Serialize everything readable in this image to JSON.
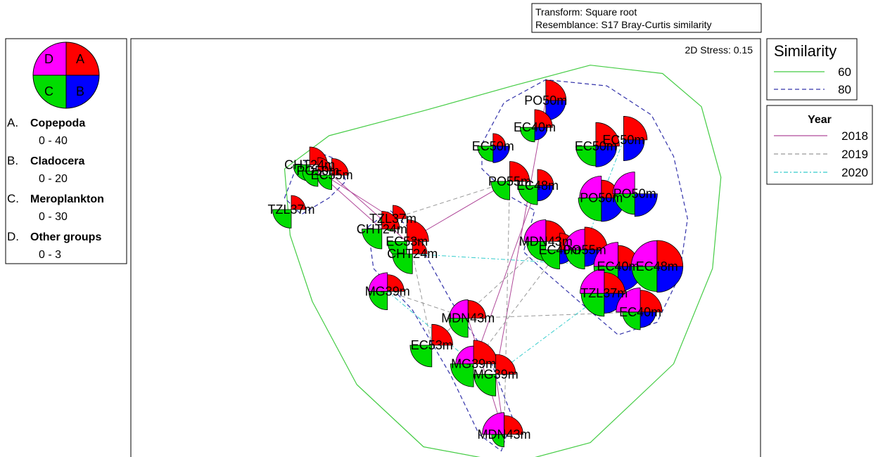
{
  "transform_box": {
    "line1": "Transform: Square root",
    "line2": "Resemblance: S17 Bray-Curtis similarity"
  },
  "legend_key": {
    "quadrants": {
      "A": "#ff0000",
      "B": "#0000ff",
      "C": "#00dd00",
      "D": "#ff00ff"
    },
    "items": [
      {
        "letter": "A.",
        "name": "Copepoda",
        "range": "0 - 40"
      },
      {
        "letter": "B.",
        "name": "Cladocera",
        "range": "0 - 20"
      },
      {
        "letter": "C.",
        "name": "Meroplankton",
        "range": "0 - 30"
      },
      {
        "letter": "D.",
        "name": "Other groups",
        "range": "0 - 3"
      }
    ]
  },
  "similarity_legend": {
    "title": "Similarity",
    "title_color": "#1a1aff",
    "entries": [
      {
        "label": "60",
        "color": "#44cc44",
        "dash": ""
      },
      {
        "label": "80",
        "color": "#3333aa",
        "dash": "6,4"
      }
    ]
  },
  "year_legend": {
    "title": "Year",
    "entries": [
      {
        "label": "2018",
        "color": "#b04a9a",
        "dash": ""
      },
      {
        "label": "2019",
        "color": "#999999",
        "dash": "6,4"
      },
      {
        "label": "2020",
        "color": "#33cccc",
        "dash": "6,3,2,3"
      }
    ]
  },
  "chart_data": {
    "type": "scatter",
    "stress": "2D Stress: 0.15",
    "xlim": [
      0,
      1
    ],
    "ylim": [
      0,
      1
    ],
    "axes": "none",
    "max_values": {
      "A": 40,
      "B": 20,
      "C": 30,
      "D": 3
    },
    "points": [
      {
        "id": "p0",
        "label": "CHT24m",
        "x": 0.195,
        "y": 0.73,
        "A": 16,
        "B": 0,
        "C": 10,
        "D": 0
      },
      {
        "id": "p1",
        "label": "PO50m",
        "x": 0.21,
        "y": 0.715,
        "A": 9,
        "B": 0,
        "C": 9,
        "D": 0
      },
      {
        "id": "p2",
        "label": "EC55m",
        "x": 0.235,
        "y": 0.705,
        "A": 14,
        "B": 0,
        "C": 8,
        "D": 0
      },
      {
        "id": "p3",
        "label": "TZL37m",
        "x": 0.162,
        "y": 0.622,
        "A": 10,
        "B": 0,
        "C": 13,
        "D": 0
      },
      {
        "id": "p4",
        "label": "TZL37m",
        "x": 0.345,
        "y": 0.6,
        "A": 9,
        "B": 0,
        "C": 6,
        "D": 0
      },
      {
        "id": "p5",
        "label": "CHT24m",
        "x": 0.325,
        "y": 0.575,
        "A": 16,
        "B": 0,
        "C": 15,
        "D": 0
      },
      {
        "id": "p6",
        "label": "EC53m",
        "x": 0.37,
        "y": 0.545,
        "A": 24,
        "B": 0,
        "C": 14,
        "D": 0
      },
      {
        "id": "p7",
        "label": "CHT24m",
        "x": 0.38,
        "y": 0.515,
        "A": 11,
        "B": 0,
        "C": 15,
        "D": 0
      },
      {
        "id": "p8",
        "label": "MG39m",
        "x": 0.335,
        "y": 0.425,
        "A": 14,
        "B": 0,
        "C": 13,
        "D": 1.3
      },
      {
        "id": "p9",
        "label": "MDN43m",
        "x": 0.48,
        "y": 0.36,
        "A": 16,
        "B": 0,
        "C": 14,
        "D": 1.3
      },
      {
        "id": "p10",
        "label": "EC53m",
        "x": 0.415,
        "y": 0.295,
        "A": 22,
        "B": 0,
        "C": 18,
        "D": 0
      },
      {
        "id": "p11",
        "label": "MG39m",
        "x": 0.49,
        "y": 0.25,
        "A": 28,
        "B": 0,
        "C": 20,
        "D": 1.2
      },
      {
        "id": "p12",
        "label": "MG39m",
        "x": 0.53,
        "y": 0.225,
        "A": 20,
        "B": 0,
        "C": 18,
        "D": 0
      },
      {
        "id": "p13",
        "label": "MDN43m",
        "x": 0.545,
        "y": 0.08,
        "A": 18,
        "B": 0,
        "C": 6,
        "D": 1.8
      },
      {
        "id": "p14",
        "label": "PO50m",
        "x": 0.62,
        "y": 0.885,
        "A": 21,
        "B": 10,
        "C": 0,
        "D": 0
      },
      {
        "id": "p15",
        "label": "EC40m",
        "x": 0.6,
        "y": 0.82,
        "A": 16,
        "B": 4,
        "C": 8,
        "D": 0
      },
      {
        "id": "p16",
        "label": "EC50m",
        "x": 0.525,
        "y": 0.775,
        "A": 8,
        "B": 7,
        "C": 9,
        "D": 0
      },
      {
        "id": "p17",
        "label": "PO55m",
        "x": 0.555,
        "y": 0.69,
        "A": 20,
        "B": 0,
        "C": 13,
        "D": 0
      },
      {
        "id": "p18",
        "label": "EC48m",
        "x": 0.605,
        "y": 0.68,
        "A": 13,
        "B": 6,
        "C": 14,
        "D": 0
      },
      {
        "id": "p19",
        "label": "EC50m",
        "x": 0.71,
        "y": 0.775,
        "A": 28,
        "B": 11,
        "C": 15,
        "D": 0
      },
      {
        "id": "p20",
        "label": "EC50m",
        "x": 0.76,
        "y": 0.79,
        "A": 28,
        "B": 11,
        "C": 0,
        "D": 0
      },
      {
        "id": "p21",
        "label": "PO50m",
        "x": 0.72,
        "y": 0.65,
        "A": 16,
        "B": 14,
        "C": 20,
        "D": 1.8
      },
      {
        "id": "p22",
        "label": "PO50m",
        "x": 0.78,
        "y": 0.66,
        "A": 0,
        "B": 13,
        "C": 16,
        "D": 1.8
      },
      {
        "id": "p23",
        "label": "MDN43m",
        "x": 0.62,
        "y": 0.545,
        "A": 22,
        "B": 0,
        "C": 14,
        "D": 1.8
      },
      {
        "id": "p24",
        "label": "EC40m",
        "x": 0.645,
        "y": 0.525,
        "A": 14,
        "B": 5,
        "C": 14,
        "D": 0
      },
      {
        "id": "p25",
        "label": "PO55m",
        "x": 0.69,
        "y": 0.525,
        "A": 26,
        "B": 7,
        "C": 14,
        "D": 1.6
      },
      {
        "id": "p26",
        "label": "EC40m",
        "x": 0.75,
        "y": 0.485,
        "A": 22,
        "B": 16,
        "C": 22,
        "D": 2.2
      },
      {
        "id": "p27",
        "label": "EC48m",
        "x": 0.82,
        "y": 0.485,
        "A": 34,
        "B": 17,
        "C": 24,
        "D": 2.5
      },
      {
        "id": "p28",
        "label": "TZL37m",
        "x": 0.725,
        "y": 0.42,
        "A": 22,
        "B": 10,
        "C": 20,
        "D": 2.2
      },
      {
        "id": "p29",
        "label": "EC40m",
        "x": 0.79,
        "y": 0.375,
        "A": 24,
        "B": 6,
        "C": 12,
        "D": 2.2
      }
    ],
    "sim60_contours": [
      {
        "path": [
          [
            0.15,
            0.72
          ],
          [
            0.23,
            0.8
          ],
          [
            0.4,
            0.86
          ],
          [
            0.56,
            0.92
          ],
          [
            0.7,
            0.97
          ],
          [
            0.83,
            0.95
          ],
          [
            0.9,
            0.87
          ],
          [
            0.935,
            0.7
          ],
          [
            0.92,
            0.48
          ],
          [
            0.85,
            0.25
          ],
          [
            0.7,
            0.06
          ],
          [
            0.56,
            0.01
          ],
          [
            0.4,
            0.05
          ],
          [
            0.28,
            0.2
          ],
          [
            0.2,
            0.4
          ],
          [
            0.16,
            0.56
          ],
          [
            0.15,
            0.72
          ]
        ]
      }
    ],
    "sim80_contours": [
      {
        "path": [
          [
            0.15,
            0.65
          ],
          [
            0.17,
            0.72
          ],
          [
            0.21,
            0.76
          ],
          [
            0.25,
            0.74
          ],
          [
            0.26,
            0.69
          ],
          [
            0.23,
            0.65
          ],
          [
            0.18,
            0.61
          ],
          [
            0.15,
            0.65
          ]
        ]
      },
      {
        "path": [
          [
            0.3,
            0.58
          ],
          [
            0.34,
            0.62
          ],
          [
            0.38,
            0.57
          ],
          [
            0.45,
            0.4
          ],
          [
            0.52,
            0.26
          ],
          [
            0.56,
            0.12
          ],
          [
            0.54,
            0.04
          ],
          [
            0.5,
            0.08
          ],
          [
            0.45,
            0.22
          ],
          [
            0.38,
            0.38
          ],
          [
            0.31,
            0.48
          ],
          [
            0.3,
            0.58
          ]
        ]
      },
      {
        "path": [
          [
            0.505,
            0.78
          ],
          [
            0.545,
            0.88
          ],
          [
            0.62,
            0.935
          ],
          [
            0.73,
            0.92
          ],
          [
            0.81,
            0.85
          ],
          [
            0.85,
            0.75
          ],
          [
            0.875,
            0.6
          ],
          [
            0.86,
            0.46
          ],
          [
            0.82,
            0.35
          ],
          [
            0.75,
            0.32
          ],
          [
            0.68,
            0.4
          ],
          [
            0.62,
            0.47
          ],
          [
            0.58,
            0.52
          ],
          [
            0.6,
            0.62
          ],
          [
            0.56,
            0.65
          ],
          [
            0.505,
            0.72
          ],
          [
            0.505,
            0.78
          ]
        ]
      }
    ],
    "year_links": [
      {
        "year": "2018",
        "from": "p0",
        "to": "p5"
      },
      {
        "year": "2018",
        "from": "p1",
        "to": "p4"
      },
      {
        "year": "2018",
        "from": "p2",
        "to": "p6"
      },
      {
        "year": "2018",
        "from": "p6",
        "to": "p17"
      },
      {
        "year": "2018",
        "from": "p14",
        "to": "p12"
      },
      {
        "year": "2018",
        "from": "p9",
        "to": "p13"
      },
      {
        "year": "2018",
        "from": "p12",
        "to": "p13"
      },
      {
        "year": "2018",
        "from": "p18",
        "to": "p11"
      },
      {
        "year": "2019",
        "from": "p4",
        "to": "p17"
      },
      {
        "year": "2019",
        "from": "p9",
        "to": "p29"
      },
      {
        "year": "2019",
        "from": "p7",
        "to": "p10"
      },
      {
        "year": "2019",
        "from": "p10",
        "to": "p23"
      },
      {
        "year": "2019",
        "from": "p11",
        "to": "p24"
      },
      {
        "year": "2019",
        "from": "p8",
        "to": "p9"
      },
      {
        "year": "2019",
        "from": "p17",
        "to": "p13"
      },
      {
        "year": "2020",
        "from": "p7",
        "to": "p26"
      },
      {
        "year": "2020",
        "from": "p12",
        "to": "p28"
      },
      {
        "year": "2020",
        "from": "p21",
        "to": "p25"
      },
      {
        "year": "2020",
        "from": "p20",
        "to": "p21"
      },
      {
        "year": "2020",
        "from": "p8",
        "to": "p11"
      }
    ]
  }
}
